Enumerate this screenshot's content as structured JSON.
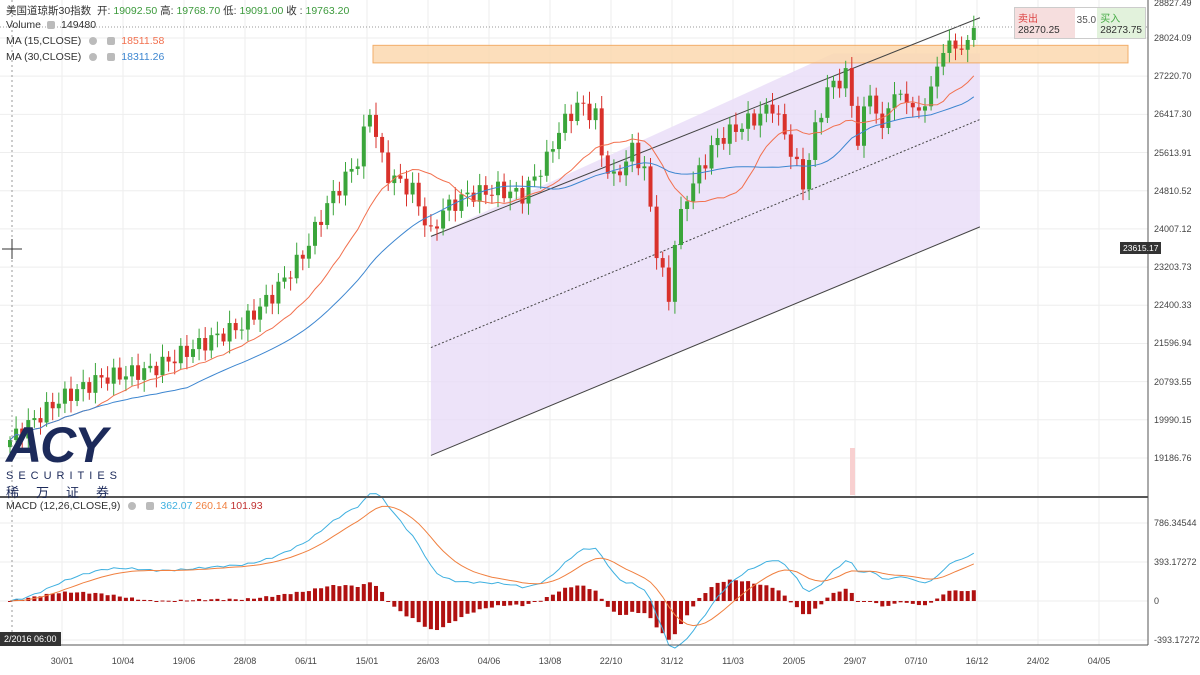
{
  "header": {
    "symbol": "美国道琼斯30指数",
    "open_label": "开:",
    "open": "19092.50",
    "high_label": "高:",
    "high": "19768.70",
    "low_label": "低:",
    "low": "19091.00",
    "close_label": "收 :",
    "close": "19763.20",
    "volume_label": "Volume",
    "volume": "149480",
    "ma15_label": "MA (15,CLOSE)",
    "ma15": "18511.58",
    "ma30_label": "MA (30,CLOSE)",
    "ma30": "18311.26",
    "macd_label": "MACD (12,26,CLOSE,9)",
    "macd": "362.07",
    "signal": "260.14",
    "hist": "101.93"
  },
  "trade": {
    "sell_label": "卖出",
    "sell": "28270.25",
    "spread": "35.0",
    "buy_label": "买入",
    "buy": "28273.75"
  },
  "logo": {
    "name": "ACY",
    "sub": "SECURITIES",
    "cn": "稀万证券"
  },
  "crosshair": {
    "price": "23615.17",
    "date": "2/2016  06:00"
  },
  "colors": {
    "up": "#3aa53a",
    "down": "#d9312b",
    "ma15": "#f2704e",
    "ma30": "#3d86d0",
    "macd": "#3fb0e0",
    "signal": "#f08040",
    "hist": "#b01010",
    "channel": "#e9dcf8",
    "band": "#fcd9b0"
  },
  "chart_data": {
    "type": "candlestick",
    "title": "美国道琼斯30指数",
    "x_tick_labels": [
      "30/01",
      "10/04",
      "19/06",
      "28/08",
      "06/11",
      "15/01",
      "26/03",
      "04/06",
      "13/08",
      "22/10",
      "31/12",
      "11/03",
      "20/05",
      "29/07",
      "07/10",
      "16/12",
      "24/02",
      "04/05"
    ],
    "y_tick_labels": [
      "28827.49",
      "28024.09",
      "27220.70",
      "26417.30",
      "25613.91",
      "24810.52",
      "24007.12",
      "23203.73",
      "22400.33",
      "21596.94",
      "20793.55",
      "19990.15",
      "19186.76"
    ],
    "macd_tick_labels": [
      "786.34544",
      "393.17272",
      "0",
      "-393.17272"
    ],
    "ylim": [
      18700,
      28900
    ],
    "close_keypoints_week_price": [
      [
        0,
        19565
      ],
      [
        8,
        20407
      ],
      [
        15,
        20870
      ],
      [
        23,
        21038
      ],
      [
        31,
        21564
      ],
      [
        38,
        21985
      ],
      [
        43,
        22616
      ],
      [
        48,
        23458
      ],
      [
        52,
        24510
      ],
      [
        57,
        25457
      ],
      [
        59,
        26509
      ],
      [
        61,
        25457
      ],
      [
        62,
        25141
      ],
      [
        66,
        24826
      ],
      [
        69,
        23879
      ],
      [
        71,
        24405
      ],
      [
        75,
        24720
      ],
      [
        80,
        24826
      ],
      [
        84,
        24720
      ],
      [
        88,
        25457
      ],
      [
        90,
        26088
      ],
      [
        93,
        26614
      ],
      [
        96,
        26404
      ],
      [
        97,
        25562
      ],
      [
        99,
        25036
      ],
      [
        102,
        25667
      ],
      [
        104,
        25246
      ],
      [
        106,
        23564
      ],
      [
        108,
        22511
      ],
      [
        109,
        23774
      ],
      [
        111,
        24720
      ],
      [
        114,
        25457
      ],
      [
        116,
        25878
      ],
      [
        120,
        26193
      ],
      [
        123,
        26404
      ],
      [
        125,
        26614
      ],
      [
        128,
        25667
      ],
      [
        130,
        24931
      ],
      [
        132,
        26088
      ],
      [
        134,
        26930
      ],
      [
        137,
        27246
      ],
      [
        138,
        26614
      ],
      [
        139,
        25878
      ],
      [
        141,
        26930
      ],
      [
        143,
        25983
      ],
      [
        144,
        26720
      ],
      [
        147,
        26825
      ],
      [
        148,
        26404
      ],
      [
        151,
        26825
      ],
      [
        152,
        27561
      ],
      [
        155,
        27982
      ],
      [
        156,
        27666
      ],
      [
        158,
        28234
      ]
    ],
    "indicators": [
      "MA 15",
      "MA 30",
      "MACD 12,26,9"
    ],
    "channel": {
      "upper": [
        [
          69,
          23850
        ],
        [
          159,
          28450
        ]
      ],
      "middle": [
        [
          69,
          21510
        ],
        [
          159,
          26310
        ]
      ],
      "lower": [
        [
          69,
          19240
        ],
        [
          159,
          24050
        ]
      ]
    },
    "resistance_band": [
      27500,
      27870
    ]
  }
}
